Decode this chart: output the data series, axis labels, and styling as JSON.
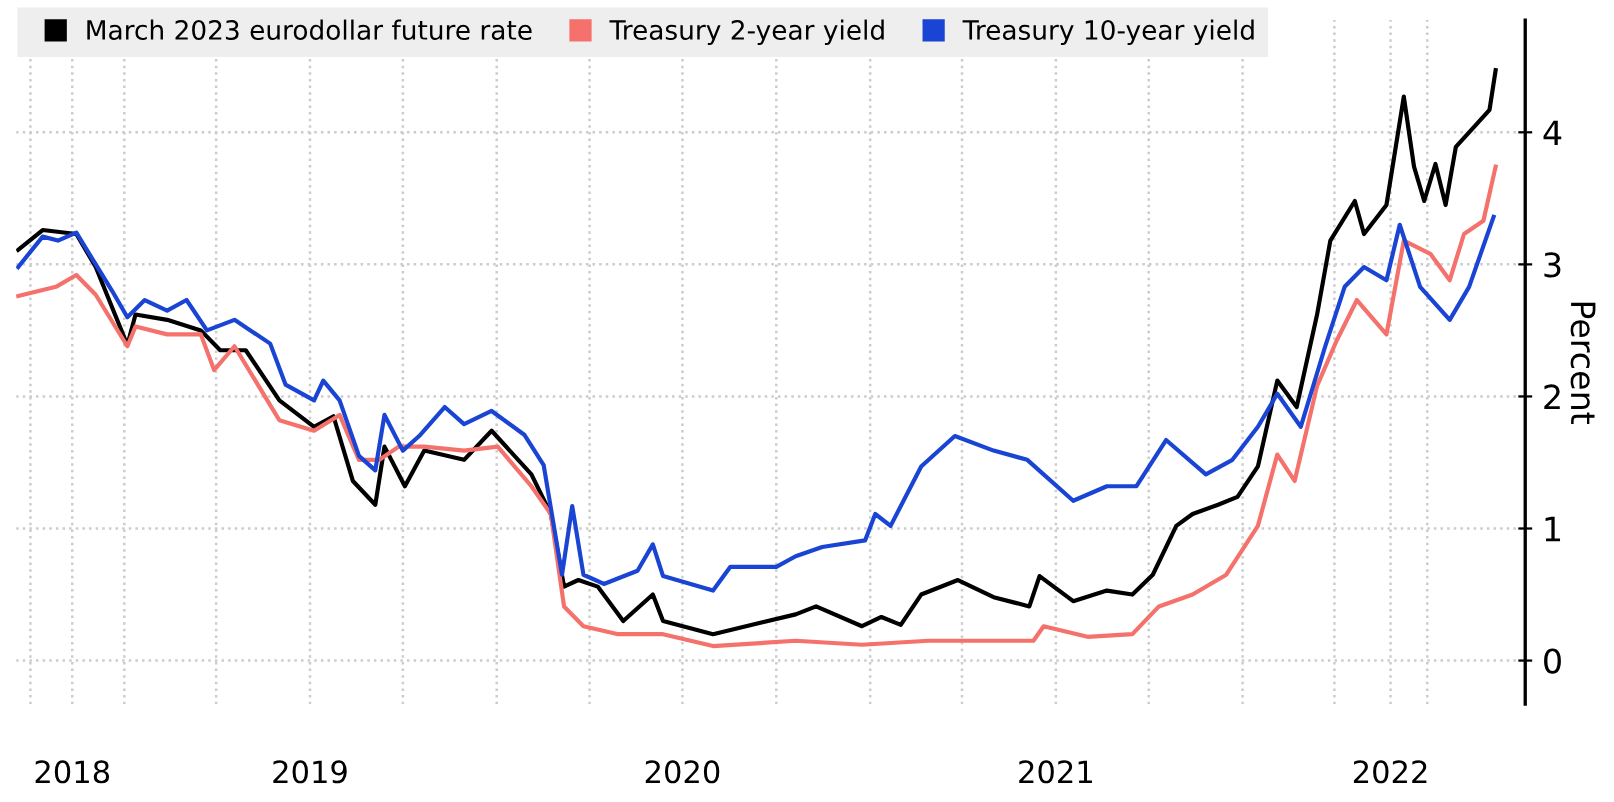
{
  "chart_data": {
    "type": "line",
    "ylabel": "Percent",
    "legend": "top left",
    "grid": true,
    "line_style": "solid",
    "xlim": [
      "2018-09-17",
      "2022-10-05"
    ],
    "ylim": [
      -0.33,
      4.85
    ],
    "yticks": [
      0,
      1,
      2,
      3,
      4
    ],
    "xticks": [
      {
        "value": "2018-10-01",
        "label": null
      },
      {
        "value": "2018-11-11",
        "label": "2018"
      },
      {
        "value": "2019-01-01",
        "label": null
      },
      {
        "value": "2019-04-01",
        "label": null
      },
      {
        "value": "2019-07-02",
        "label": "2019"
      },
      {
        "value": "2019-10-01",
        "label": null
      },
      {
        "value": "2020-01-01",
        "label": null
      },
      {
        "value": "2020-04-01",
        "label": null
      },
      {
        "value": "2020-07-01",
        "label": "2020"
      },
      {
        "value": "2020-10-01",
        "label": null
      },
      {
        "value": "2021-01-01",
        "label": null
      },
      {
        "value": "2021-04-01",
        "label": null
      },
      {
        "value": "2021-07-02",
        "label": "2021"
      },
      {
        "value": "2021-10-01",
        "label": null
      },
      {
        "value": "2022-01-01",
        "label": null
      },
      {
        "value": "2022-04-01",
        "label": null
      },
      {
        "value": "2022-05-26",
        "label": "2022"
      },
      {
        "value": "2022-07-01",
        "label": null
      }
    ],
    "series": [
      {
        "name": "March 2023 eurodollar future rate",
        "color": "#000000",
        "x": [
          "2018-09-19",
          "2018-10-13",
          "2018-11-15",
          "2018-12-04",
          "2019-01-04",
          "2019-01-12",
          "2019-02-12",
          "2019-03-17",
          "2019-04-05",
          "2019-04-30",
          "2019-06-02",
          "2019-07-06",
          "2019-07-25",
          "2019-08-13",
          "2019-09-04",
          "2019-09-13",
          "2019-10-03",
          "2019-10-22",
          "2019-11-30",
          "2019-12-27",
          "2020-02-04",
          "2020-02-23",
          "2020-03-07",
          "2020-03-21",
          "2020-04-09",
          "2020-05-04",
          "2020-06-02",
          "2020-06-12",
          "2020-07-31",
          "2020-10-20",
          "2020-11-09",
          "2020-12-24",
          "2021-01-12",
          "2021-01-31",
          "2021-02-20",
          "2021-03-28",
          "2021-05-02",
          "2021-06-06",
          "2021-06-16",
          "2021-07-19",
          "2021-08-21",
          "2021-09-15",
          "2021-10-05",
          "2021-10-28",
          "2021-11-13",
          "2021-12-08",
          "2021-12-27",
          "2022-01-16",
          "2022-02-04",
          "2022-02-23",
          "2022-03-15",
          "2022-03-28",
          "2022-04-21",
          "2022-04-30",
          "2022-05-22",
          "2022-06-08",
          "2022-06-18",
          "2022-06-28",
          "2022-07-09",
          "2022-07-19",
          "2022-07-29",
          "2022-08-17",
          "2022-08-31",
          "2022-09-06"
        ],
        "values": [
          3.11,
          3.26,
          3.23,
          2.98,
          2.39,
          2.62,
          2.58,
          2.5,
          2.35,
          2.35,
          1.97,
          1.77,
          1.85,
          1.36,
          1.18,
          1.62,
          1.32,
          1.59,
          1.52,
          1.74,
          1.41,
          1.11,
          0.56,
          0.61,
          0.56,
          0.3,
          0.5,
          0.3,
          0.2,
          0.35,
          0.41,
          0.26,
          0.33,
          0.27,
          0.5,
          0.61,
          0.48,
          0.41,
          0.64,
          0.45,
          0.53,
          0.5,
          0.65,
          1.02,
          1.11,
          1.18,
          1.24,
          1.47,
          2.12,
          1.92,
          2.62,
          3.18,
          3.48,
          3.23,
          3.45,
          4.27,
          3.74,
          3.48,
          3.76,
          3.45,
          3.89,
          4.05,
          4.17,
          4.47
        ]
      },
      {
        "name": "Treasury 2-year yield",
        "color": "#f4716c",
        "x": [
          "2018-09-19",
          "2018-10-26",
          "2018-11-15",
          "2018-12-04",
          "2019-01-04",
          "2019-01-12",
          "2019-02-12",
          "2019-03-17",
          "2019-03-30",
          "2019-04-19",
          "2019-06-02",
          "2019-07-06",
          "2019-07-31",
          "2019-08-19",
          "2019-09-08",
          "2019-09-27",
          "2019-10-22",
          "2019-11-30",
          "2020-01-02",
          "2020-02-04",
          "2020-02-23",
          "2020-03-07",
          "2020-03-26",
          "2020-04-29",
          "2020-06-12",
          "2020-07-31",
          "2020-10-20",
          "2020-12-24",
          "2021-02-27",
          "2021-06-10",
          "2021-06-20",
          "2021-08-02",
          "2021-09-15",
          "2021-10-11",
          "2021-11-13",
          "2021-12-16",
          "2022-01-16",
          "2022-02-04",
          "2022-02-21",
          "2022-03-15",
          "2022-04-03",
          "2022-04-23",
          "2022-05-22",
          "2022-06-08",
          "2022-07-04",
          "2022-07-23",
          "2022-08-06",
          "2022-08-25",
          "2022-09-06"
        ],
        "values": [
          2.76,
          2.83,
          2.92,
          2.77,
          2.38,
          2.53,
          2.47,
          2.47,
          2.2,
          2.38,
          1.82,
          1.74,
          1.86,
          1.52,
          1.52,
          1.62,
          1.62,
          1.59,
          1.62,
          1.32,
          1.11,
          0.41,
          0.26,
          0.2,
          0.2,
          0.11,
          0.15,
          0.12,
          0.15,
          0.15,
          0.26,
          0.18,
          0.2,
          0.41,
          0.5,
          0.65,
          1.02,
          1.56,
          1.36,
          2.08,
          2.42,
          2.73,
          2.47,
          3.18,
          3.08,
          2.88,
          3.23,
          3.33,
          3.74
        ]
      },
      {
        "name": "Treasury 10-year yield",
        "color": "#1a45d4",
        "x": [
          "2018-09-19",
          "2018-10-13",
          "2018-10-28",
          "2018-11-15",
          "2018-12-04",
          "2018-12-20",
          "2019-01-04",
          "2019-01-21",
          "2019-02-12",
          "2019-03-03",
          "2019-03-23",
          "2019-04-19",
          "2019-05-24",
          "2019-06-08",
          "2019-07-06",
          "2019-07-15",
          "2019-07-31",
          "2019-08-19",
          "2019-09-04",
          "2019-09-13",
          "2019-10-01",
          "2019-10-17",
          "2019-11-11",
          "2019-11-30",
          "2019-12-27",
          "2020-01-28",
          "2020-02-16",
          "2020-03-05",
          "2020-03-15",
          "2020-03-26",
          "2020-04-15",
          "2020-05-18",
          "2020-06-02",
          "2020-06-12",
          "2020-07-31",
          "2020-08-17",
          "2020-10-01",
          "2020-10-20",
          "2020-11-15",
          "2020-12-27",
          "2021-01-06",
          "2021-01-21",
          "2021-02-20",
          "2021-03-25",
          "2021-05-02",
          "2021-06-04",
          "2021-07-19",
          "2021-08-21",
          "2021-09-19",
          "2021-10-18",
          "2021-11-26",
          "2021-12-22",
          "2022-01-16",
          "2022-02-04",
          "2022-02-27",
          "2022-03-23",
          "2022-04-11",
          "2022-04-30",
          "2022-05-22",
          "2022-06-04",
          "2022-06-24",
          "2022-07-23",
          "2022-08-11",
          "2022-09-04"
        ],
        "values": [
          2.98,
          3.21,
          3.18,
          3.24,
          3.0,
          2.8,
          2.6,
          2.73,
          2.65,
          2.73,
          2.5,
          2.58,
          2.4,
          2.09,
          1.97,
          2.12,
          1.97,
          1.55,
          1.44,
          1.86,
          1.59,
          1.7,
          1.92,
          1.79,
          1.89,
          1.71,
          1.48,
          0.65,
          1.17,
          0.65,
          0.58,
          0.68,
          0.88,
          0.64,
          0.53,
          0.71,
          0.71,
          0.79,
          0.86,
          0.91,
          1.11,
          1.02,
          1.47,
          1.7,
          1.59,
          1.52,
          1.21,
          1.32,
          1.32,
          1.67,
          1.41,
          1.52,
          1.77,
          2.02,
          1.77,
          2.38,
          2.83,
          2.98,
          2.88,
          3.3,
          2.83,
          2.58,
          2.83,
          3.36
        ]
      }
    ]
  }
}
